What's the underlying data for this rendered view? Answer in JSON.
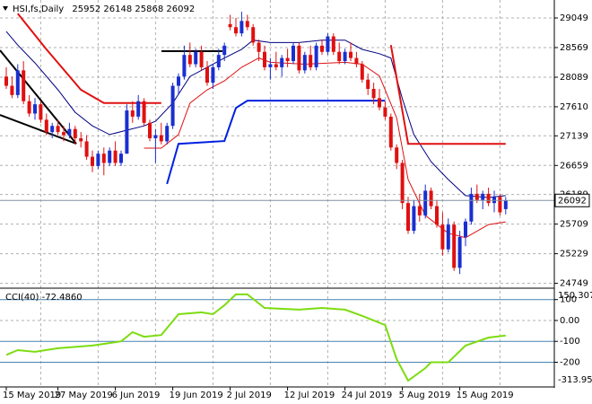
{
  "chart_data": [
    {
      "type": "candlestick",
      "title": "HSI,fs,Daily",
      "categories": [
        "15 May 2019",
        null,
        null,
        null,
        null,
        null,
        null,
        null,
        null,
        "27 May 2019",
        null,
        null,
        null,
        null,
        null,
        null,
        null,
        null,
        null,
        "6 Jun 2019",
        null,
        null,
        null,
        null,
        null,
        null,
        null,
        null,
        null,
        "19 Jun 2019",
        null,
        null,
        null,
        null,
        null,
        null,
        null,
        null,
        null,
        "2 Jul 2019",
        null,
        null,
        null,
        null,
        null,
        null,
        null,
        null,
        null,
        "12 Jul 2019",
        null,
        null,
        null,
        null,
        null,
        null,
        null,
        null,
        null,
        "24 Jul 2019",
        null,
        null,
        null,
        null,
        null,
        null,
        null,
        null,
        null,
        "5 Aug 2019",
        null,
        null,
        null,
        null,
        null,
        null,
        null,
        null,
        null,
        "15 Aug 2019",
        null,
        null,
        null,
        null,
        null,
        null,
        null,
        null
      ],
      "open": [
        28100,
        27950,
        27800,
        28200,
        27700,
        27500,
        27650,
        27400,
        27200,
        27300,
        27200,
        27150,
        27250,
        27100,
        27050,
        26800,
        26650,
        26850,
        26700,
        26900,
        26700,
        26850,
        27550,
        27450,
        27700,
        27350,
        27100,
        27150,
        27050,
        27300,
        27950,
        28100,
        28450,
        28300,
        28500,
        28250,
        28000,
        28250,
        28450,
        28950,
        28900,
        28800,
        29000,
        28900,
        28650,
        28500,
        28250,
        28300,
        28250,
        28400,
        28350,
        28600,
        28200,
        28450,
        28250,
        28600,
        28500,
        28750,
        28500,
        28350,
        28500,
        28400,
        28300,
        28050,
        27900,
        27750,
        27600,
        27450,
        26950,
        26700,
        26050,
        25600,
        26000,
        25850,
        26250,
        26000,
        25700,
        25300,
        25700,
        25000,
        25500,
        25750,
        26200,
        26100,
        26200,
        26050,
        26150,
        25952
      ],
      "high": [
        28250,
        28100,
        28300,
        28350,
        27800,
        27750,
        27700,
        27500,
        27350,
        27400,
        27300,
        27350,
        27300,
        27200,
        27150,
        26900,
        26900,
        26950,
        26950,
        27050,
        26900,
        27650,
        27700,
        27800,
        27750,
        27400,
        27250,
        27350,
        27350,
        28000,
        28150,
        28600,
        28650,
        28550,
        28600,
        28350,
        28300,
        28550,
        28650,
        29100,
        29050,
        29150,
        29100,
        28950,
        28700,
        28600,
        28400,
        28500,
        28450,
        28550,
        28650,
        28650,
        28500,
        28600,
        28650,
        28700,
        28800,
        28800,
        28650,
        28550,
        28650,
        28500,
        28350,
        28150,
        28000,
        27900,
        27700,
        27500,
        27000,
        26750,
        26150,
        26100,
        26200,
        26350,
        26300,
        26100,
        25900,
        25800,
        25750,
        25600,
        25800,
        26300,
        26350,
        26250,
        26300,
        26250,
        26200,
        26148
      ],
      "low": [
        27900,
        27750,
        27750,
        27650,
        27450,
        27400,
        27350,
        27150,
        27100,
        27150,
        27050,
        27100,
        27000,
        26950,
        26750,
        26550,
        26600,
        26500,
        26650,
        26650,
        26650,
        26850,
        27350,
        27400,
        27300,
        27050,
        26700,
        27000,
        27000,
        27250,
        27800,
        28050,
        28250,
        28250,
        28200,
        27950,
        27900,
        28200,
        28350,
        28850,
        28750,
        28750,
        28850,
        28600,
        28350,
        28200,
        28050,
        28200,
        28100,
        28250,
        28300,
        28150,
        28150,
        28200,
        28200,
        28450,
        28450,
        28450,
        28300,
        28300,
        28350,
        28250,
        28000,
        27800,
        27650,
        27550,
        27400,
        26900,
        26600,
        25950,
        25550,
        25550,
        25750,
        25800,
        25950,
        25650,
        25200,
        25250,
        24950,
        24900,
        25350,
        25700,
        26050,
        25950,
        26000,
        25900,
        25850,
        25868
      ],
      "close": [
        27950,
        27800,
        28200,
        27700,
        27500,
        27650,
        27400,
        27200,
        27300,
        27200,
        27150,
        27250,
        27100,
        27050,
        26800,
        26650,
        26850,
        26700,
        26900,
        26700,
        26850,
        27550,
        27450,
        27700,
        27350,
        27100,
        27150,
        27050,
        27300,
        27950,
        28100,
        28450,
        28300,
        28500,
        28250,
        28000,
        28250,
        28450,
        28600,
        28900,
        28800,
        29000,
        28900,
        28650,
        28500,
        28250,
        28300,
        28250,
        28400,
        28350,
        28600,
        28200,
        28450,
        28250,
        28600,
        28500,
        28750,
        28500,
        28350,
        28500,
        28400,
        28300,
        28050,
        27900,
        27750,
        27600,
        27450,
        26950,
        26700,
        26050,
        25600,
        26000,
        25850,
        26250,
        26000,
        25700,
        25300,
        25700,
        25000,
        25500,
        25750,
        26200,
        26100,
        26200,
        26050,
        26150,
        25900,
        26092
      ],
      "up_color": "#1a2fd0",
      "down_color": "#e01010",
      "ylim": [
        24685,
        29340
      ],
      "yticks": [
        29049,
        28569,
        28089,
        27610,
        27139,
        26659,
        26189,
        25709,
        25229,
        24749
      ],
      "grid": true,
      "lines": [
        {
          "color": "#000080",
          "width": 1,
          "x": [
            0,
            2,
            5,
            9,
            12,
            15,
            18,
            21,
            24,
            26,
            29,
            32,
            35,
            38,
            41,
            43,
            46,
            51,
            55,
            59,
            62,
            65,
            67,
            69,
            71,
            74,
            77,
            80,
            84,
            87
          ],
          "values": [
            28830,
            28610,
            28320,
            27885,
            27520,
            27300,
            27160,
            27230,
            27300,
            27375,
            27670,
            28100,
            28250,
            28400,
            28540,
            28690,
            28650,
            28650,
            28690,
            28690,
            28540,
            28470,
            28400,
            27740,
            27160,
            26720,
            26430,
            26170,
            26140,
            26170
          ]
        },
        {
          "color": "#e01010",
          "width": 1,
          "x": [
            24,
            27,
            30,
            32,
            35,
            38,
            41,
            44,
            46,
            52,
            59,
            62,
            65,
            68,
            70,
            73,
            77,
            80,
            84,
            87
          ],
          "values": [
            26940,
            26940,
            27160,
            27670,
            27885,
            28030,
            28250,
            28400,
            28330,
            28300,
            28330,
            28300,
            28110,
            27430,
            26430,
            25850,
            25560,
            25490,
            25700,
            25745
          ]
        },
        {
          "color": "#e01010",
          "width": 2,
          "x": [
            2,
            7,
            13,
            17,
            27,
            null,
            67,
            70,
            87
          ],
          "values": [
            29120,
            28540,
            27885,
            27670,
            27670,
            null,
            28610,
            27010,
            27010
          ]
        },
        {
          "color": "#0020e0",
          "width": 2,
          "x": [
            28,
            30,
            38,
            40,
            42,
            66
          ],
          "values": [
            26360,
            27010,
            27055,
            27590,
            27710,
            27710
          ]
        }
      ]
    },
    {
      "type": "line",
      "title": "CCI(40) -72.4860",
      "color": "#7ddc10",
      "x": [
        0,
        2,
        5,
        9,
        15,
        20,
        22,
        24,
        27,
        30,
        34,
        36,
        38,
        40,
        42,
        45,
        51,
        55,
        59,
        62,
        66,
        68,
        70,
        73,
        74,
        77,
        80,
        84,
        87
      ],
      "values": [
        -165,
        -142,
        -150,
        -133,
        -120,
        -100,
        -56,
        -78,
        -70,
        30,
        39,
        30,
        73,
        125,
        125,
        60,
        52,
        60,
        52,
        22,
        -22,
        -185,
        -288,
        -228,
        -200,
        -200,
        -120,
        -82,
        -72.486
      ],
      "ylim": [
        -313.9504,
        150.3071
      ],
      "yticks": [
        100,
        {
          "value": 0,
          "label": "0.00"
        },
        -100,
        -200
      ],
      "level_color": "#4682b4"
    }
  ]
}
